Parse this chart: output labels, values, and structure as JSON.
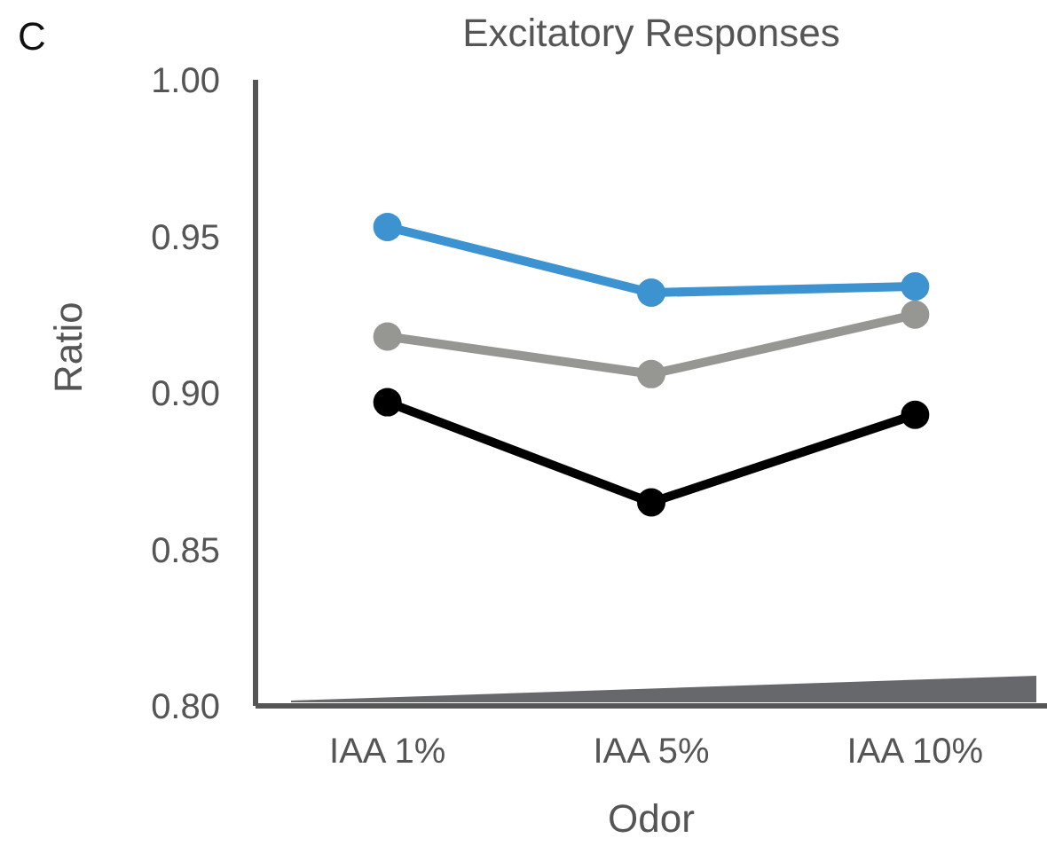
{
  "chart_data": {
    "type": "line",
    "title": "Excitatory Responses",
    "xlabel": "Odor",
    "ylabel": "Ratio",
    "annotations": [
      "C"
    ],
    "categories": [
      "IAA 1%",
      "IAA 5%",
      "IAA 10%"
    ],
    "series": [
      {
        "color": "#3d92d0",
        "values": [
          0.953,
          0.932,
          0.934
        ]
      },
      {
        "color": "#969793",
        "values": [
          0.918,
          0.906,
          0.925
        ]
      },
      {
        "color": "#000000",
        "values": [
          0.897,
          0.865,
          0.893
        ]
      }
    ],
    "ylim": [
      0.8,
      1.0
    ],
    "yticks": [
      {
        "value": 0.8,
        "label": "0.80"
      },
      {
        "value": 0.85,
        "label": "0.85"
      },
      {
        "value": 0.9,
        "label": "0.90"
      },
      {
        "value": 0.95,
        "label": "0.95"
      },
      {
        "value": 1.0,
        "label": "1.00"
      }
    ],
    "grid": false,
    "marker": "circle",
    "line_style": "solid"
  }
}
